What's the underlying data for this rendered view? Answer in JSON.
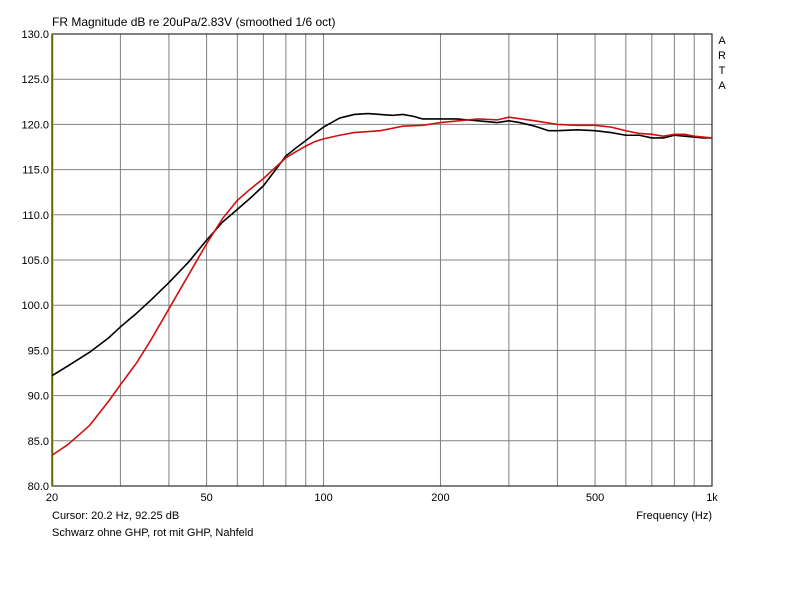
{
  "header": {
    "title": "FR Magnitude dB re 20uPa/2.83V (smoothed 1/6 oct)",
    "brand_letters": [
      "A",
      "R",
      "T",
      "A"
    ]
  },
  "footer": {
    "cursor": "Cursor: 20.2 Hz, 92.25 dB",
    "note": "Schwarz ohne GHP, rot mit GHP, Nahfeld"
  },
  "chart_data": {
    "type": "line",
    "title": "FR Magnitude dB re 20uPa/2.83V (smoothed 1/6 oct)",
    "xlabel": "Frequency (Hz)",
    "ylabel": "",
    "x_scale": "log",
    "xlim": [
      20,
      1000
    ],
    "ylim": [
      80,
      130
    ],
    "grid": true,
    "y_ticks": [
      "130.0",
      "125.0",
      "120.0",
      "115.0",
      "110.0",
      "105.0",
      "100.0",
      "95.0",
      "90.0",
      "85.0",
      "80.0"
    ],
    "x_ticks": [
      {
        "value": 20,
        "label": "20"
      },
      {
        "value": 50,
        "label": "50"
      },
      {
        "value": 100,
        "label": "100"
      },
      {
        "value": 200,
        "label": "200"
      },
      {
        "value": 500,
        "label": "500"
      },
      {
        "value": 1000,
        "label": "1k"
      }
    ],
    "x_minor_grid": [
      30,
      40,
      60,
      70,
      80,
      90,
      300,
      400,
      600,
      700,
      800,
      900
    ],
    "colors": {
      "black": "#000000",
      "red": "#d01010",
      "grid": "#808080",
      "cursor": "#c8c800"
    },
    "series": [
      {
        "color": "#000000",
        "points": [
          [
            20,
            92.2
          ],
          [
            22,
            93.3
          ],
          [
            25,
            94.8
          ],
          [
            28,
            96.4
          ],
          [
            30,
            97.6
          ],
          [
            33,
            99.1
          ],
          [
            36,
            100.6
          ],
          [
            40,
            102.5
          ],
          [
            45,
            104.8
          ],
          [
            50,
            107.2
          ],
          [
            55,
            109.2
          ],
          [
            60,
            110.6
          ],
          [
            65,
            111.9
          ],
          [
            70,
            113.2
          ],
          [
            75,
            114.9
          ],
          [
            80,
            116.5
          ],
          [
            85,
            117.4
          ],
          [
            90,
            118.2
          ],
          [
            95,
            119.0
          ],
          [
            100,
            119.7
          ],
          [
            110,
            120.7
          ],
          [
            120,
            121.1
          ],
          [
            130,
            121.2
          ],
          [
            140,
            121.1
          ],
          [
            150,
            121.0
          ],
          [
            160,
            121.1
          ],
          [
            170,
            120.9
          ],
          [
            180,
            120.6
          ],
          [
            200,
            120.6
          ],
          [
            220,
            120.6
          ],
          [
            250,
            120.4
          ],
          [
            280,
            120.2
          ],
          [
            300,
            120.4
          ],
          [
            320,
            120.2
          ],
          [
            350,
            119.8
          ],
          [
            380,
            119.3
          ],
          [
            400,
            119.3
          ],
          [
            450,
            119.4
          ],
          [
            500,
            119.3
          ],
          [
            550,
            119.1
          ],
          [
            600,
            118.8
          ],
          [
            650,
            118.8
          ],
          [
            700,
            118.5
          ],
          [
            750,
            118.5
          ],
          [
            800,
            118.8
          ],
          [
            850,
            118.7
          ],
          [
            900,
            118.6
          ],
          [
            950,
            118.5
          ],
          [
            1000,
            118.5
          ]
        ]
      },
      {
        "color": "#d01010",
        "points": [
          [
            20,
            83.4
          ],
          [
            22,
            84.6
          ],
          [
            25,
            86.7
          ],
          [
            28,
            89.4
          ],
          [
            30,
            91.2
          ],
          [
            33,
            93.6
          ],
          [
            36,
            96.2
          ],
          [
            40,
            99.6
          ],
          [
            45,
            103.4
          ],
          [
            50,
            106.8
          ],
          [
            55,
            109.6
          ],
          [
            60,
            111.6
          ],
          [
            65,
            112.9
          ],
          [
            70,
            114.0
          ],
          [
            75,
            115.2
          ],
          [
            80,
            116.3
          ],
          [
            85,
            117.0
          ],
          [
            90,
            117.6
          ],
          [
            95,
            118.1
          ],
          [
            100,
            118.4
          ],
          [
            110,
            118.8
          ],
          [
            120,
            119.1
          ],
          [
            140,
            119.3
          ],
          [
            160,
            119.8
          ],
          [
            180,
            119.9
          ],
          [
            200,
            120.2
          ],
          [
            250,
            120.6
          ],
          [
            280,
            120.5
          ],
          [
            300,
            120.8
          ],
          [
            350,
            120.4
          ],
          [
            400,
            120.0
          ],
          [
            450,
            119.9
          ],
          [
            500,
            119.9
          ],
          [
            550,
            119.7
          ],
          [
            600,
            119.3
          ],
          [
            650,
            119.0
          ],
          [
            700,
            118.9
          ],
          [
            750,
            118.7
          ],
          [
            800,
            118.9
          ],
          [
            850,
            118.9
          ],
          [
            900,
            118.7
          ],
          [
            1000,
            118.5
          ]
        ]
      }
    ]
  }
}
